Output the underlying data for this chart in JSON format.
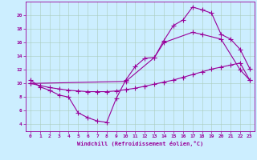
{
  "xlabel": "Windchill (Refroidissement éolien,°C)",
  "bg_color": "#cceeff",
  "line_color": "#990099",
  "grid_color": "#aaccbb",
  "x_ticks": [
    0,
    1,
    2,
    3,
    4,
    5,
    6,
    7,
    8,
    9,
    10,
    11,
    12,
    13,
    14,
    15,
    16,
    17,
    18,
    19,
    20,
    21,
    22,
    23
  ],
  "y_ticks": [
    4,
    6,
    8,
    10,
    12,
    14,
    16,
    18,
    20
  ],
  "ylim": [
    3.0,
    22.0
  ],
  "xlim": [
    -0.5,
    23.5
  ],
  "line1_x": [
    0,
    1,
    2,
    3,
    4,
    5,
    6,
    7,
    8,
    9,
    10,
    11,
    12,
    13,
    14,
    15,
    16,
    17,
    18,
    19,
    20,
    21,
    22,
    23
  ],
  "line1_y": [
    10.5,
    9.5,
    9.0,
    8.3,
    8.0,
    5.7,
    5.0,
    4.5,
    4.3,
    7.8,
    10.5,
    12.5,
    13.7,
    13.8,
    16.3,
    18.5,
    19.3,
    21.2,
    20.8,
    20.3,
    17.2,
    16.5,
    15.0,
    12.2
  ],
  "line2_x": [
    0,
    10,
    13,
    14,
    17,
    18,
    20,
    22,
    23
  ],
  "line2_y": [
    10.0,
    10.3,
    13.8,
    16.0,
    17.5,
    17.2,
    16.5,
    12.0,
    10.5
  ],
  "line3_x": [
    0,
    1,
    2,
    3,
    4,
    5,
    6,
    7,
    8,
    9,
    10,
    11,
    12,
    13,
    14,
    15,
    16,
    17,
    18,
    19,
    20,
    21,
    22,
    23
  ],
  "line3_y": [
    10.0,
    9.7,
    9.4,
    9.2,
    9.0,
    8.9,
    8.8,
    8.8,
    8.8,
    8.9,
    9.1,
    9.3,
    9.6,
    9.9,
    10.2,
    10.5,
    10.9,
    11.3,
    11.7,
    12.1,
    12.4,
    12.7,
    13.0,
    10.5
  ]
}
